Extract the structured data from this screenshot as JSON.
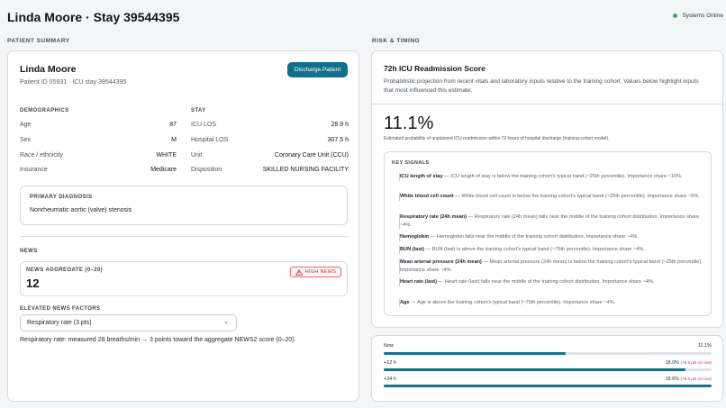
{
  "header": {
    "title": "Linda Moore · Stay 39544395",
    "status": "Systems Online",
    "status_color": "#2fb36a"
  },
  "sections": {
    "patient_summary": "PATIENT SUMMARY",
    "risk_timing": "RISK & TIMING"
  },
  "patient": {
    "name": "Linda Moore",
    "ids": "Patient ID 05931 · ICU stay 39544395",
    "discharge_button": "Discharge Patient"
  },
  "demographics": {
    "caption": "DEMOGRAPHICS",
    "rows": [
      {
        "k": "Age",
        "v": "87"
      },
      {
        "k": "Sex",
        "v": "M"
      },
      {
        "k": "Race / ethnicity",
        "v": "WHITE"
      },
      {
        "k": "Insurance",
        "v": "Medicare"
      }
    ]
  },
  "stay": {
    "caption": "STAY",
    "rows": [
      {
        "k": "ICU LOS",
        "v": "28.9 h"
      },
      {
        "k": "Hospital LOS",
        "v": "307.5 h"
      },
      {
        "k": "Unit",
        "v": "Coronary Care Unit (CCU)"
      },
      {
        "k": "Disposition",
        "v": "SKILLED NURSING FACILITY"
      }
    ]
  },
  "diagnosis": {
    "caption": "PRIMARY DIAGNOSIS",
    "value": "Nonrheumatic aortic (valve) stenosis"
  },
  "news": {
    "caption": "NEWS",
    "aggregate_caption": "NEWS AGGREGATE (0–20)",
    "aggregate_value": "12",
    "badge": "HIGH NEWS",
    "badge_color": "#c53030",
    "factors_caption": "ELEVATED NEWS FACTORS",
    "selected_factor": "Respiratory rate (3 pts)",
    "factor_note": "Respiratory rate: measured 28 breaths/min → 3 points toward the aggregate NEWS2 score (0–20)."
  },
  "score": {
    "title": "72h ICU Readmission Score",
    "description": "Probabilistic projection from recent vitals and laboratory inputs relative to the training cohort. Values below highlight inputs that most influenced this estimate.",
    "value": "11.1%",
    "value_desc": "Estimated probability of unplanned ICU readmission within 72 hours of hospital discharge (training-cohort model).",
    "signals_caption": "KEY SIGNALS",
    "signals": [
      {
        "name": "ICU length of stay",
        "text": " — ICU length of stay is below the training cohort's typical band (~25th percentile). Importance share ~10%."
      },
      {
        "name": "White blood cell count",
        "text": " — White blood cell count is below the training cohort's typical band (~25th percentile). Importance share ~5%."
      },
      {
        "name": "Respiratory rate (24h mean)",
        "text": " — Respiratory rate (24h mean) falls near the middle of the training cohort distribution. Importance share ~4%."
      },
      {
        "name": "Hemoglobin",
        "text": " — Hemoglobin falls near the middle of the training cohort distribution. Importance share ~4%."
      },
      {
        "name": "BUN (last)",
        "text": " — BUN (last) is above the training cohort's typical band (~75th percentile). Importance share ~4%."
      },
      {
        "name": "Mean arterial pressure (24h mean)",
        "text": " — Mean arterial pressure (24h mean) is below the training cohort's typical band (~25th percentile). Importance share ~4%."
      },
      {
        "name": "Heart rate (last)",
        "text": " — Heart rate (last) falls near the middle of the training cohort distribution. Importance share ~4%."
      },
      {
        "name": "Age",
        "text": " — Age is above the training cohort's typical band (~75th percentile). Importance share ~4%."
      }
    ]
  },
  "timeline": [
    {
      "label": "Now",
      "value": "11.1%",
      "delta": "",
      "fraction": 0.555
    },
    {
      "label": "+12 h",
      "value": "18.0%",
      "delta": "(+6.9 pts vs now)",
      "fraction": 0.92
    },
    {
      "label": "+24 h",
      "value": "19.6%",
      "delta": "(+8.5 pts vs now)",
      "fraction": 1.0
    }
  ],
  "colors": {
    "accent": "#12708f",
    "bar_fill": "#16708e",
    "delta": "#d13438"
  }
}
